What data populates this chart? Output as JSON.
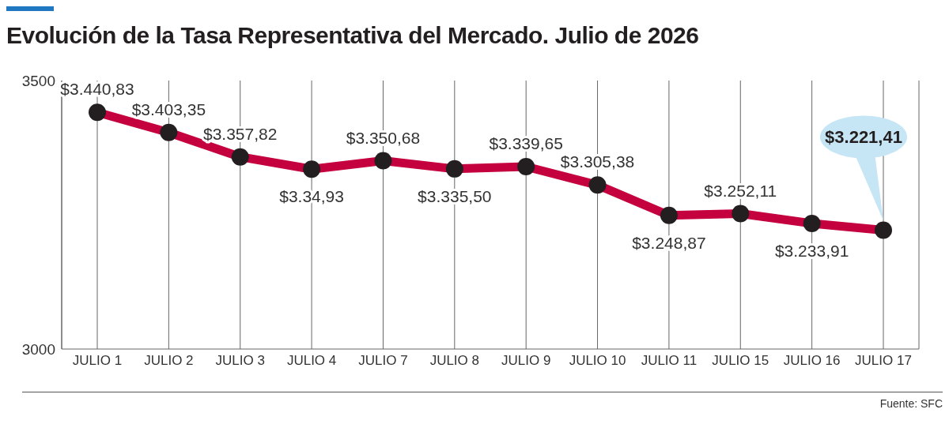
{
  "chart_data": {
    "type": "line",
    "title": "Evolución de la Tasa Representativa del Mercado. Julio de 2026",
    "categories": [
      "JULIO 1",
      "JULIO 2",
      "JULIO 3",
      "JULIO 4",
      "JULIO 7",
      "JULIO 8",
      "JULIO 9",
      "JULIO 10",
      "JULIO 11",
      "JULIO 15",
      "JULIO 16",
      "JULIO 17"
    ],
    "series": [
      {
        "color": "#c5003e",
        "values": [
          3440.83,
          3403.35,
          3357.82,
          3334.93,
          3350.68,
          3335.5,
          3339.65,
          3305.38,
          3248.87,
          3252.11,
          3233.91,
          3221.41
        ],
        "value_labels": [
          "$3.440,83",
          "$3.403,35",
          "$3.357,82",
          "$3.34,93",
          "$3.350,68",
          "$3.335,50",
          "$3.339,65",
          "$3.305,38",
          "$3.248,87",
          "$3.252,11",
          "$3.233,91",
          "$3.221,41"
        ]
      }
    ],
    "ylim": [
      3000,
      3500
    ],
    "yticks": [
      3000,
      3500
    ],
    "grid": "x",
    "marker": "circle",
    "line_style": "solid",
    "legend": false,
    "annotations": [
      "Fuente: SFC"
    ]
  }
}
